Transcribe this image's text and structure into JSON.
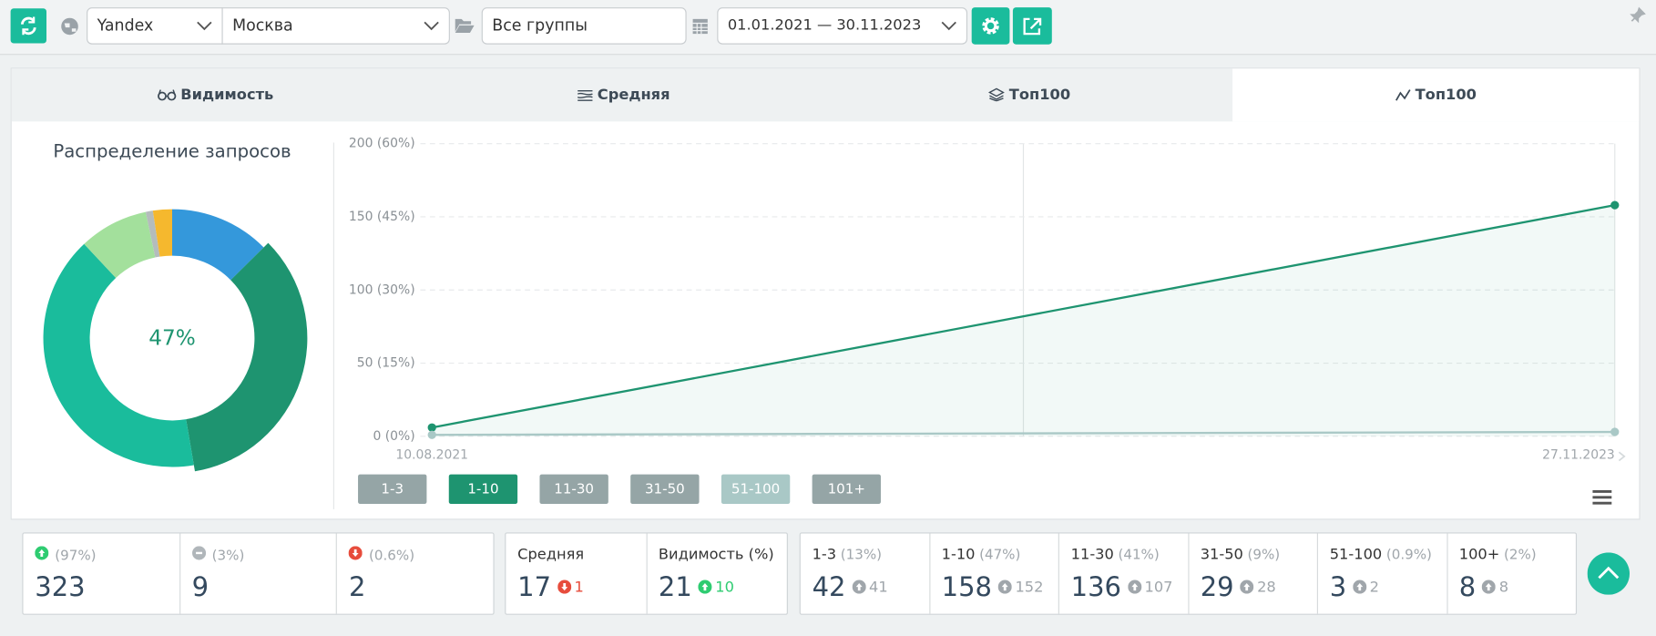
{
  "toolbar": {
    "engine": "Yandex",
    "region": "Москва",
    "group": "Все группы",
    "date_range": "01.01.2021 — 30.11.2023"
  },
  "tabs": [
    "Видимость",
    "Средняя",
    "Топ100",
    "Топ100"
  ],
  "chart_data": [
    {
      "type": "pie",
      "title": "Распределение запросов",
      "center_label": "47%",
      "values": [
        42,
        116,
        136,
        29,
        3,
        8
      ],
      "colors": [
        "#3498db",
        "#1e9470",
        "#1abc9c",
        "#a3e09c",
        "#b4bcbc",
        "#f5b82e"
      ]
    },
    {
      "type": "line",
      "x": [
        "10.08.2021",
        "27.11.2023"
      ],
      "ylim": [
        0,
        200
      ],
      "yticks": [
        {
          "value": 0,
          "label": "0 (0%)"
        },
        {
          "value": 50,
          "label": "50 (15%)"
        },
        {
          "value": 100,
          "label": "100 (30%)"
        },
        {
          "value": 150,
          "label": "150 (45%)"
        },
        {
          "value": 200,
          "label": "200 (60%)"
        }
      ],
      "grid": true,
      "series": [
        {
          "name": "1-3",
          "color": "#95a5a6"
        },
        {
          "name": "1-10",
          "color": "#1e9470",
          "values": [
            6,
            158
          ]
        },
        {
          "name": "11-30",
          "color": "#95a5a6"
        },
        {
          "name": "31-50",
          "color": "#95a5a6"
        },
        {
          "name": "51-100",
          "color": "#a9c8c6",
          "values": [
            1,
            3
          ]
        },
        {
          "name": "101+",
          "color": "#95a5a6"
        }
      ]
    }
  ],
  "stats": {
    "changes": [
      {
        "share": "(97%)",
        "value": 323,
        "trend": "up"
      },
      {
        "share": "(3%)",
        "value": 9,
        "trend": "none"
      },
      {
        "share": "(0.6%)",
        "value": 2,
        "trend": "down"
      }
    ],
    "averages": [
      {
        "label": "Средняя",
        "value": 17,
        "delta": 1,
        "trend": "down"
      },
      {
        "label": "Видимость (%)",
        "value": 21,
        "delta": 10,
        "trend": "up"
      }
    ],
    "positions": [
      {
        "label": "1-3",
        "share": "(13%)",
        "value": 42,
        "delta": 41
      },
      {
        "label": "1-10",
        "share": "(47%)",
        "value": 158,
        "delta": 152
      },
      {
        "label": "11-30",
        "share": "(41%)",
        "value": 136,
        "delta": 107
      },
      {
        "label": "31-50",
        "share": "(9%)",
        "value": 29,
        "delta": 28
      },
      {
        "label": "51-100",
        "share": "(0.9%)",
        "value": 3,
        "delta": 2
      },
      {
        "label": "100+",
        "share": "(2%)",
        "value": 8,
        "delta": 8
      }
    ]
  }
}
